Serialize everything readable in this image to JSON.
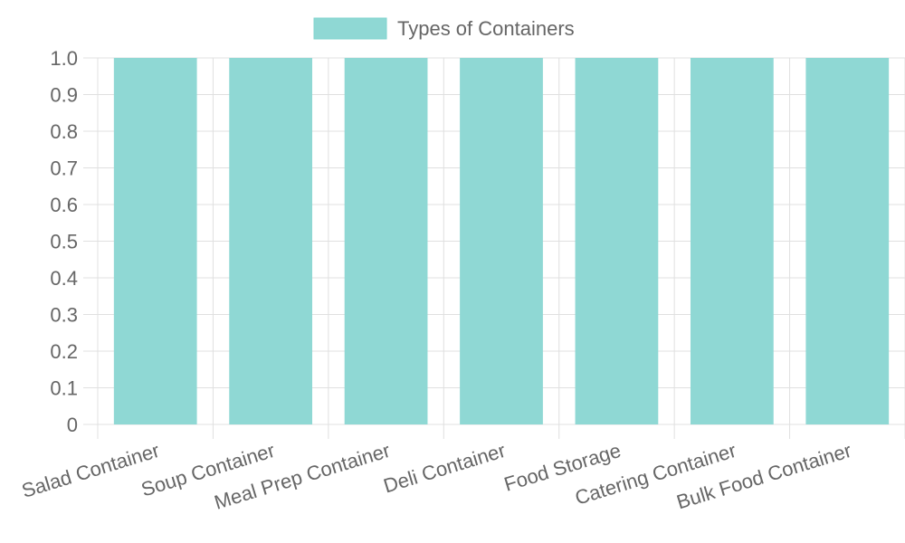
{
  "chart_data": {
    "type": "bar",
    "categories": [
      "Salad Container",
      "Soup Container",
      "Meal Prep Container",
      "Deli Container",
      "Food Storage",
      "Catering Container",
      "Bulk Food Container"
    ],
    "series": [
      {
        "name": "Types of Containers",
        "values": [
          1,
          1,
          1,
          1,
          1,
          1,
          1
        ]
      }
    ],
    "ylim": [
      0,
      1.0
    ],
    "yticks": [
      "0",
      "0.1",
      "0.2",
      "0.3",
      "0.4",
      "0.5",
      "0.6",
      "0.7",
      "0.8",
      "0.9",
      "1.0"
    ],
    "grid": true,
    "legend_position": "top-center",
    "colors": {
      "bar_fill": "#8fd8d4",
      "bar_stroke": "#7fd3ce",
      "grid": "#e0e0e0",
      "axis_text": "#666666"
    }
  }
}
